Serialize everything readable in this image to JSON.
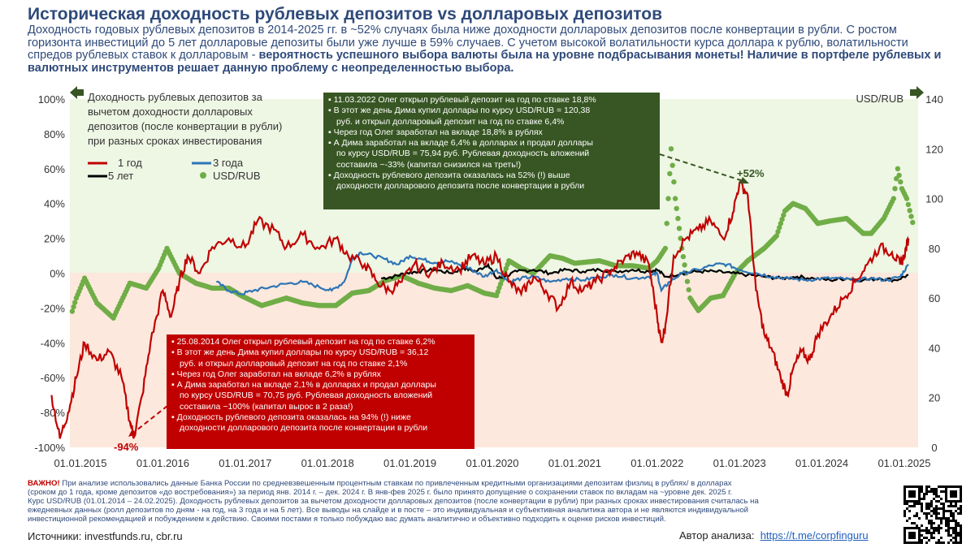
{
  "title": "Историческая доходность рублевых депозитов vs долларовых депозитов",
  "subtitle_plain": "Доходность годовых рублевых депозитов в 2014-2025 гг. в ~52% случаях была ниже доходности долларовых депозитов после конвертации в рубли. С ростом горизонта инвестиций до 5 лет долларовые депозиты были уже лучше в 59% случаев. С учетом высокой волатильности курса доллара к рублю, волатильности спредов рублевых ставок к долларовым -",
  "subtitle_bold": "вероятность успешного выбора валюты была на уровне подбрасывания монеты! Наличие в портфеле рублевых и валютных инструментов решает данную проблему с неопределенностью выбора.",
  "colors": {
    "ruble_1y": "#c00000",
    "ruble_3y": "#2e75b6",
    "ruble_5y": "#000000",
    "usdrub": "#70ad47",
    "title": "#2f4a7a",
    "box_green": "#375623",
    "box_red": "#c00000",
    "pos_zone": "#eef6e4",
    "neg_zone": "#fce8dc"
  },
  "legend_title": "Доходность рублевых депозитов за вычетом доходности долларовых депозитов (после конвертации в рубли) при разных сроках инвестирования",
  "right_axis_label": "USD/RUB",
  "annotations": {
    "max_label": "+52%",
    "min_label": "-94%"
  },
  "box_2022": [
    "▪ 11.03.2022  Олег открыл рублевый депозит на год  по ставке 18,8%",
    "▪ В этот  же день Дима купил доллары  по курсу USD/RUB = 120,38",
    "руб. и открыл долларовый  депозит на год по ставке 6,4%",
    "▪ Через год Олег заработал  на вкладе 18,8% в рублях",
    "▪ А Дима заработал  на вкладе 6,4% в долларах и продал доллары",
    "по курсу USD/RUB = 75,94 руб. Рублевая доходность  вложений",
    "составила ~-33% (капитал  снизился на треть!)",
    "▪ Доходность рублевого депозита  оказалась на 52% (!) выше",
    "доходности долларового депозита после конвертации  в рубли"
  ],
  "box_2014": [
    "▪ 25.08.2014  Олег открыл рублевый депозит на год  по ставке 6,2%",
    "▪ В этот  же день Дима купил доллары  по курсу USD/RUB = 36,12",
    "руб. и открыл долларовый  депозит на год по ставке 2,1%",
    "▪ Через год Олег заработал  на вкладе 6,2% в рублях",
    "▪ А Дима заработал  на вкладе 2,1% в долларах и продал доллары",
    "по курсу USD/RUB = 70,75 руб. Рублевая доходность  вложений",
    "составила ~100% (капитал  вырос в 2 раза!)",
    "▪ Доходность рублевого депозита  оказалась на 94% (!) ниже",
    "доходности долларового  депозита  после конвертации  в рубли"
  ],
  "footnote_bold": "ВАЖНО!",
  "footnote_lines": [
    " При анализе использовались данные Банка России по средневзвешенным процентным ставкам по привлеченным кредитными организациями депозитам физлиц в рублях/ в долларах",
    "(сроком до 1 года, кроме депозитов «до востребования») за период янв. 2014 г. – дек. 2024 г. В янв-фев 2025 г. было принято допущение о сохранении ставок по вкладам на ~уровне дек. 2025 г.",
    "Курс USD/RUB (01.01.2014 – 24.02.2025). Доходность рублевых депозитов за вычетом доходности долларовых депозитов (после конвертации в рубли) при разных сроках инвестирования считалась на",
    "ежедневных данных (ролл депозитов по дням - на год, на 3 года и на 5 лет). Все выводы на слайде и в посте – это индивидуальная и субъективная аналитика автора и не являются индивидуальной",
    "инвестиционной рекомендацией и побуждением к действию. Своими постами я только побуждаю вас думать аналитично и объективно подходить к оценке рисков инвестиций."
  ],
  "sources": "Источники:  investfunds.ru,  cbr.ru",
  "author_label": "Автор анализа:",
  "author_link": "https://t.me/corpfinguru",
  "chart_data": {
    "type": "line",
    "x_ticks": [
      "01.01.2015",
      "01.01.2016",
      "01.01.2017",
      "01.01.2018",
      "01.01.2019",
      "01.01.2020",
      "01.01.2021",
      "01.01.2022",
      "01.01.2023",
      "01.01.2024",
      "01.01.2025"
    ],
    "y_left": {
      "min": -100,
      "max": 100,
      "ticks": [
        "100%",
        "80%",
        "60%",
        "40%",
        "20%",
        "0%",
        "-20%",
        "-40%",
        "-60%",
        "-80%",
        "-100%"
      ]
    },
    "y_right": {
      "min": 0,
      "max": 140,
      "ticks": [
        "140",
        "120",
        "100",
        "80",
        "60",
        "40",
        "20",
        "0"
      ]
    },
    "series": [
      {
        "name": "1 год",
        "axis": "left",
        "points": [
          [
            2014.65,
            -70
          ],
          [
            2014.75,
            -95
          ],
          [
            2014.85,
            -80
          ],
          [
            2014.95,
            -60
          ],
          [
            2015.05,
            -40
          ],
          [
            2015.2,
            -50
          ],
          [
            2015.35,
            -45
          ],
          [
            2015.5,
            -60
          ],
          [
            2015.6,
            -85
          ],
          [
            2015.65,
            -94
          ],
          [
            2015.75,
            -70
          ],
          [
            2015.85,
            -40
          ],
          [
            2016.0,
            -10
          ],
          [
            2016.1,
            -25
          ],
          [
            2016.2,
            -5
          ],
          [
            2016.3,
            10
          ],
          [
            2016.45,
            0
          ],
          [
            2016.6,
            15
          ],
          [
            2016.8,
            20
          ],
          [
            2017.0,
            15
          ],
          [
            2017.15,
            30
          ],
          [
            2017.35,
            25
          ],
          [
            2017.5,
            15
          ],
          [
            2017.7,
            22
          ],
          [
            2017.9,
            14
          ],
          [
            2018.1,
            20
          ],
          [
            2018.25,
            10
          ],
          [
            2018.45,
            5
          ],
          [
            2018.6,
            -5
          ],
          [
            2018.75,
            -10
          ],
          [
            2018.9,
            -5
          ],
          [
            2019.05,
            5
          ],
          [
            2019.25,
            0
          ],
          [
            2019.4,
            6
          ],
          [
            2019.6,
            2
          ],
          [
            2019.75,
            10
          ],
          [
            2019.9,
            5
          ],
          [
            2020.05,
            10
          ],
          [
            2020.2,
            -5
          ],
          [
            2020.35,
            -12
          ],
          [
            2020.5,
            -2
          ],
          [
            2020.65,
            -10
          ],
          [
            2020.8,
            -20
          ],
          [
            2020.95,
            -5
          ],
          [
            2021.1,
            -10
          ],
          [
            2021.25,
            -5
          ],
          [
            2021.45,
            2
          ],
          [
            2021.6,
            8
          ],
          [
            2021.75,
            12
          ],
          [
            2021.9,
            5
          ],
          [
            2022.0,
            -25
          ],
          [
            2022.05,
            -40
          ],
          [
            2022.1,
            -30
          ],
          [
            2022.2,
            10
          ],
          [
            2022.35,
            20
          ],
          [
            2022.5,
            25
          ],
          [
            2022.65,
            30
          ],
          [
            2022.8,
            20
          ],
          [
            2022.92,
            35
          ],
          [
            2023.0,
            52
          ],
          [
            2023.1,
            45
          ],
          [
            2023.2,
            -10
          ],
          [
            2023.3,
            -35
          ],
          [
            2023.4,
            -45
          ],
          [
            2023.5,
            -60
          ],
          [
            2023.58,
            -70
          ],
          [
            2023.65,
            -55
          ],
          [
            2023.75,
            -45
          ],
          [
            2023.85,
            -50
          ],
          [
            2023.95,
            -35
          ],
          [
            2024.1,
            -25
          ],
          [
            2024.25,
            -15
          ],
          [
            2024.4,
            -5
          ],
          [
            2024.55,
            5
          ],
          [
            2024.7,
            15
          ],
          [
            2024.85,
            12
          ],
          [
            2024.95,
            5
          ],
          [
            2025.0,
            10
          ],
          [
            2025.05,
            20
          ]
        ]
      },
      {
        "name": "3 года",
        "axis": "left",
        "points": [
          [
            2016.65,
            -5
          ],
          [
            2016.8,
            -10
          ],
          [
            2016.95,
            -12
          ],
          [
            2017.1,
            -10
          ],
          [
            2017.3,
            -8
          ],
          [
            2017.5,
            -6
          ],
          [
            2017.7,
            -5
          ],
          [
            2017.9,
            -8
          ],
          [
            2018.05,
            -10
          ],
          [
            2018.2,
            -5
          ],
          [
            2018.3,
            8
          ],
          [
            2018.4,
            12
          ],
          [
            2018.55,
            10
          ],
          [
            2018.7,
            8
          ],
          [
            2018.85,
            5
          ],
          [
            2019.0,
            10
          ],
          [
            2019.15,
            8
          ],
          [
            2019.3,
            6
          ],
          [
            2019.45,
            7
          ],
          [
            2019.6,
            5
          ],
          [
            2019.75,
            2
          ],
          [
            2019.9,
            -2
          ],
          [
            2020.05,
            2
          ],
          [
            2020.2,
            -5
          ],
          [
            2020.35,
            -3
          ],
          [
            2020.5,
            -2
          ],
          [
            2020.7,
            -5
          ],
          [
            2020.9,
            -3
          ],
          [
            2021.1,
            -4
          ],
          [
            2021.3,
            -2
          ],
          [
            2021.5,
            -1
          ],
          [
            2021.7,
            -3
          ],
          [
            2021.9,
            -2
          ],
          [
            2022.0,
            0
          ],
          [
            2022.05,
            -10
          ],
          [
            2022.15,
            -5
          ],
          [
            2022.3,
            0
          ],
          [
            2022.5,
            2
          ],
          [
            2022.7,
            5
          ],
          [
            2022.85,
            5
          ],
          [
            2023.0,
            2
          ],
          [
            2023.2,
            0
          ],
          [
            2023.4,
            -2
          ],
          [
            2023.6,
            -3
          ],
          [
            2023.8,
            -4
          ],
          [
            2024.0,
            -3
          ],
          [
            2024.2,
            -3
          ],
          [
            2024.4,
            -4
          ],
          [
            2024.6,
            -3
          ],
          [
            2024.8,
            -4
          ],
          [
            2024.95,
            -2
          ],
          [
            2025.05,
            5
          ]
        ]
      },
      {
        "name": "5 лет",
        "axis": "left",
        "points": [
          [
            2018.65,
            -3
          ],
          [
            2018.8,
            -2
          ],
          [
            2018.95,
            0
          ],
          [
            2019.1,
            1
          ],
          [
            2019.3,
            2
          ],
          [
            2019.5,
            0
          ],
          [
            2019.65,
            3
          ],
          [
            2019.8,
            1
          ],
          [
            2019.95,
            5
          ],
          [
            2020.05,
            -3
          ],
          [
            2020.15,
            -2
          ],
          [
            2020.3,
            1
          ],
          [
            2020.5,
            2
          ],
          [
            2020.7,
            0
          ],
          [
            2020.9,
            2
          ],
          [
            2021.1,
            1
          ],
          [
            2021.3,
            2
          ],
          [
            2021.5,
            1
          ],
          [
            2021.7,
            2
          ],
          [
            2021.9,
            1
          ],
          [
            2022.0,
            2
          ],
          [
            2022.1,
            -2
          ],
          [
            2022.3,
            0
          ],
          [
            2022.5,
            1
          ],
          [
            2022.7,
            1
          ],
          [
            2022.9,
            0
          ],
          [
            2023.1,
            -1
          ],
          [
            2023.3,
            -2
          ],
          [
            2023.5,
            -3
          ],
          [
            2023.7,
            -2
          ],
          [
            2023.9,
            -3
          ],
          [
            2024.1,
            -4
          ],
          [
            2024.3,
            -3
          ],
          [
            2024.5,
            -4
          ],
          [
            2024.7,
            -3
          ],
          [
            2024.9,
            -4
          ],
          [
            2025.05,
            -1
          ]
        ]
      },
      {
        "name": "USD/RUB",
        "axis": "right",
        "points": [
          [
            2014.0,
            33
          ],
          [
            2014.3,
            36
          ],
          [
            2014.6,
            36
          ],
          [
            2014.8,
            44
          ],
          [
            2014.95,
            60
          ],
          [
            2015.05,
            68
          ],
          [
            2015.2,
            58
          ],
          [
            2015.4,
            52
          ],
          [
            2015.6,
            66
          ],
          [
            2015.8,
            64
          ],
          [
            2015.95,
            72
          ],
          [
            2016.05,
            80
          ],
          [
            2016.2,
            70
          ],
          [
            2016.4,
            66
          ],
          [
            2016.6,
            64
          ],
          [
            2016.8,
            64
          ],
          [
            2016.95,
            61
          ],
          [
            2017.2,
            57
          ],
          [
            2017.5,
            60
          ],
          [
            2017.7,
            58
          ],
          [
            2017.9,
            57
          ],
          [
            2018.1,
            57
          ],
          [
            2018.3,
            62
          ],
          [
            2018.5,
            63
          ],
          [
            2018.7,
            67
          ],
          [
            2018.9,
            69
          ],
          [
            2019.1,
            66
          ],
          [
            2019.3,
            64
          ],
          [
            2019.5,
            63
          ],
          [
            2019.7,
            65
          ],
          [
            2019.9,
            62
          ],
          [
            2020.05,
            61
          ],
          [
            2020.2,
            75
          ],
          [
            2020.35,
            72
          ],
          [
            2020.5,
            70
          ],
          [
            2020.7,
            77
          ],
          [
            2020.85,
            76
          ],
          [
            2021.0,
            74
          ],
          [
            2021.3,
            75
          ],
          [
            2021.5,
            73
          ],
          [
            2021.7,
            73
          ],
          [
            2021.9,
            72
          ],
          [
            2022.0,
            75
          ],
          [
            2022.1,
            80
          ],
          [
            2022.17,
            120
          ],
          [
            2022.22,
            100
          ],
          [
            2022.3,
            80
          ],
          [
            2022.4,
            60
          ],
          [
            2022.5,
            55
          ],
          [
            2022.65,
            60
          ],
          [
            2022.8,
            61
          ],
          [
            2022.95,
            70
          ],
          [
            2023.1,
            75
          ],
          [
            2023.3,
            80
          ],
          [
            2023.45,
            85
          ],
          [
            2023.55,
            95
          ],
          [
            2023.65,
            98
          ],
          [
            2023.8,
            96
          ],
          [
            2023.95,
            90
          ],
          [
            2024.1,
            91
          ],
          [
            2024.3,
            92
          ],
          [
            2024.5,
            86
          ],
          [
            2024.6,
            86
          ],
          [
            2024.75,
            92
          ],
          [
            2024.87,
            100
          ],
          [
            2024.92,
            112
          ],
          [
            2024.97,
            104
          ],
          [
            2025.03,
            100
          ],
          [
            2025.12,
            88
          ]
        ]
      }
    ]
  }
}
